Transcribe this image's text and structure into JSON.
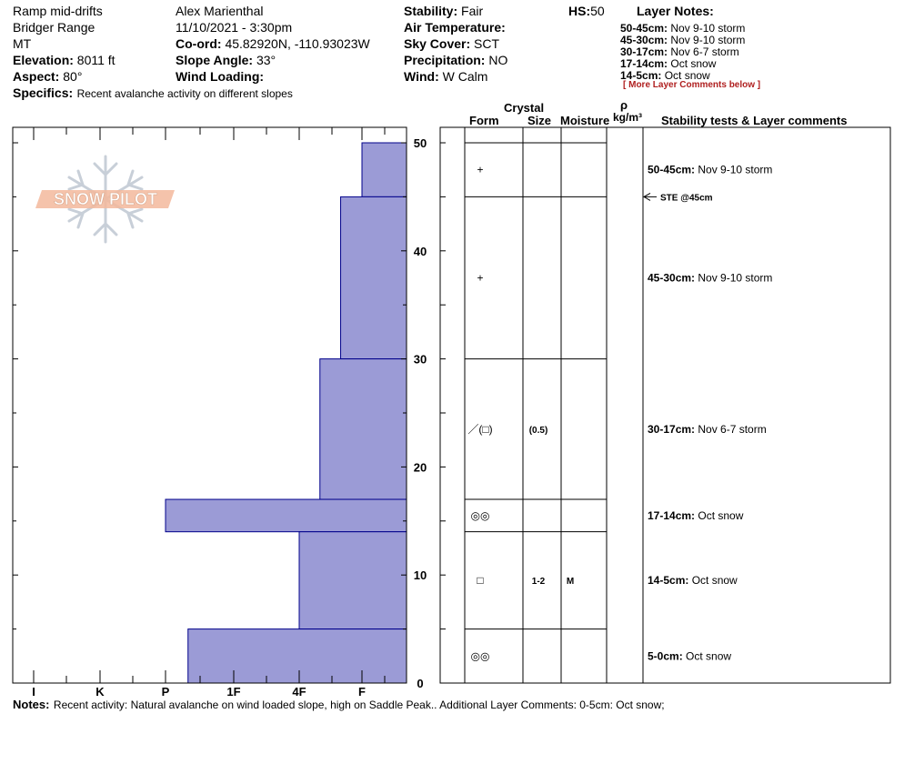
{
  "header": {
    "location": "Ramp mid-drifts",
    "range": "Bridger Range",
    "state": "MT",
    "elevation_label": "Elevation:",
    "elevation": "8011 ft",
    "aspect_label": "Aspect:",
    "aspect": "80°",
    "specifics_label": "Specifics:",
    "specifics": "Recent avalanche activity on different slopes",
    "observer": "Alex Marienthal",
    "datetime": "11/10/2021 - 3:30pm",
    "coord_label": "Co-ord:",
    "coord": "45.82920N, -110.93023W",
    "slope_label": "Slope Angle:",
    "slope": "33°",
    "wind_loading_label": "Wind Loading:",
    "wind_loading": "",
    "stability_label": "Stability:",
    "stability": "Fair",
    "air_temp_label": "Air Temperature:",
    "air_temp": "",
    "sky_label": "Sky Cover:",
    "sky": "SCT",
    "precip_label": "Precipitation:",
    "precip": "NO",
    "wind_label": "Wind:",
    "wind": "W Calm",
    "hs_label": "HS:",
    "hs": "50"
  },
  "layer_notes": {
    "title": "Layer Notes:",
    "items": [
      {
        "range": "50-45cm:",
        "text": "Nov 9-10 storm"
      },
      {
        "range": "45-30cm:",
        "text": "Nov 9-10 storm"
      },
      {
        "range": "30-17cm:",
        "text": "Nov 6-7 storm"
      },
      {
        "range": "17-14cm:",
        "text": "Oct snow"
      },
      {
        "range": "14-5cm:",
        "text": "Oct snow"
      }
    ],
    "more": "[ More Layer Comments below ]"
  },
  "logo_text": "SNOW PILOT",
  "table_headers": {
    "crystal": "Crystal",
    "form": "Form",
    "size": "Size",
    "moisture": "Moisture",
    "rho": "ρ",
    "density_unit": "kg/m³",
    "comments": "Stability tests & Layer comments"
  },
  "stability_test": {
    "depth": 45,
    "label": "STE @45cm"
  },
  "notes_label": "Notes:",
  "notes": "Recent activity: Natural avalanche on wind loaded slope, high on Saddle Peak.. Additional Layer Comments: 0-5cm: Oct snow;",
  "colors": {
    "bar_fill": "#9b9bd6",
    "bar_stroke": "#00008b",
    "logo": "#f0b090",
    "red": "#b02020"
  },
  "chart_data": {
    "type": "bar",
    "orientation": "horizontal",
    "title": "",
    "xlabel": "",
    "ylabel": "",
    "x_categories": [
      "I",
      "K",
      "P",
      "1F",
      "4F",
      "F"
    ],
    "y_range": [
      0,
      50
    ],
    "y_ticks": [
      "0",
      "10",
      "20",
      "30",
      "40",
      "50"
    ],
    "layers": [
      {
        "top": 50,
        "bottom": 45,
        "hardness_index": 5.0,
        "form": "+",
        "size": "",
        "moisture": "",
        "comment_range": "50-45cm:",
        "comment": "Nov 9-10 storm"
      },
      {
        "top": 45,
        "bottom": 30,
        "hardness_index": 4.66,
        "form": "+",
        "size": "",
        "moisture": "",
        "comment_range": "45-30cm:",
        "comment": "Nov 9-10 storm"
      },
      {
        "top": 30,
        "bottom": 17,
        "hardness_index": 4.33,
        "form": "／(□)",
        "size": "(0.5)",
        "moisture": "",
        "comment_range": "30-17cm:",
        "comment": "Nov 6-7 storm"
      },
      {
        "top": 17,
        "bottom": 14,
        "hardness_index": 2.0,
        "form": "◎◎",
        "size": "",
        "moisture": "",
        "comment_range": "17-14cm:",
        "comment": "Oct snow"
      },
      {
        "top": 14,
        "bottom": 5,
        "hardness_index": 4.0,
        "form": "□",
        "size": "1-2",
        "moisture": "M",
        "comment_range": "14-5cm:",
        "comment": "Oct snow"
      },
      {
        "top": 5,
        "bottom": 0,
        "hardness_index": 2.33,
        "form": "◎◎",
        "size": "",
        "moisture": "",
        "comment_range": "5-0cm:",
        "comment": "Oct snow"
      }
    ]
  }
}
